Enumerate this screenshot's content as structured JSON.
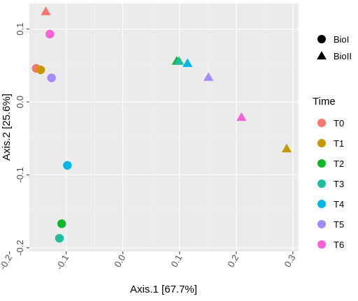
{
  "chart_data": {
    "type": "scatter",
    "xlabel": "Axis.1   [67.7%]",
    "ylabel": "Axis.2   [25.6%]",
    "xlim": [
      -0.165,
      0.31
    ],
    "ylim": [
      -0.205,
      0.135
    ],
    "x_ticks": [
      -0.2,
      -0.1,
      0.0,
      0.1,
      0.2,
      0.3
    ],
    "x_tick_labels": [
      "-0.2",
      "-0.1",
      "0.0",
      "0.1",
      "0.2",
      "0.3"
    ],
    "y_ticks": [
      -0.2,
      -0.1,
      0.0,
      0.1
    ],
    "y_tick_labels": [
      "-0.2",
      "-0.1",
      "0.0",
      "0.1"
    ],
    "grid": true,
    "panel_background": "#ebebeb",
    "shape_legend": {
      "title": "",
      "entries": [
        {
          "label": "BioI",
          "shape": "circle"
        },
        {
          "label": "BioII",
          "shape": "triangle"
        }
      ]
    },
    "color_legend": {
      "title": "Time",
      "entries": [
        {
          "label": "T0",
          "color": "#F8766D"
        },
        {
          "label": "T1",
          "color": "#C49A00"
        },
        {
          "label": "T2",
          "color": "#0DB82A"
        },
        {
          "label": "T3",
          "color": "#1DC09A"
        },
        {
          "label": "T4",
          "color": "#00B8E7"
        },
        {
          "label": "T5",
          "color": "#A58AFF"
        },
        {
          "label": "T6",
          "color": "#FB61D7"
        }
      ]
    },
    "points": [
      {
        "time": "T0",
        "bio": "BioI",
        "x": -0.153,
        "y": 0.046
      },
      {
        "time": "T1",
        "bio": "BioI",
        "x": -0.145,
        "y": 0.044
      },
      {
        "time": "T2",
        "bio": "BioI",
        "x": -0.108,
        "y": -0.167
      },
      {
        "time": "T3",
        "bio": "BioI",
        "x": -0.112,
        "y": -0.187
      },
      {
        "time": "T4",
        "bio": "BioI",
        "x": -0.098,
        "y": -0.087
      },
      {
        "time": "T5",
        "bio": "BioI",
        "x": -0.126,
        "y": 0.033
      },
      {
        "time": "T6",
        "bio": "BioI",
        "x": -0.129,
        "y": 0.093
      },
      {
        "time": "T0",
        "bio": "BioII",
        "x": -0.136,
        "y": 0.124
      },
      {
        "time": "T1",
        "bio": "BioII",
        "x": 0.289,
        "y": -0.064
      },
      {
        "time": "T2",
        "bio": "BioII",
        "x": 0.095,
        "y": 0.056
      },
      {
        "time": "T3",
        "bio": "BioII",
        "x": 0.099,
        "y": 0.056
      },
      {
        "time": "T4",
        "bio": "BioII",
        "x": 0.114,
        "y": 0.053
      },
      {
        "time": "T5",
        "bio": "BioII",
        "x": 0.151,
        "y": 0.034
      },
      {
        "time": "T6",
        "bio": "BioII",
        "x": 0.209,
        "y": -0.021
      }
    ]
  }
}
